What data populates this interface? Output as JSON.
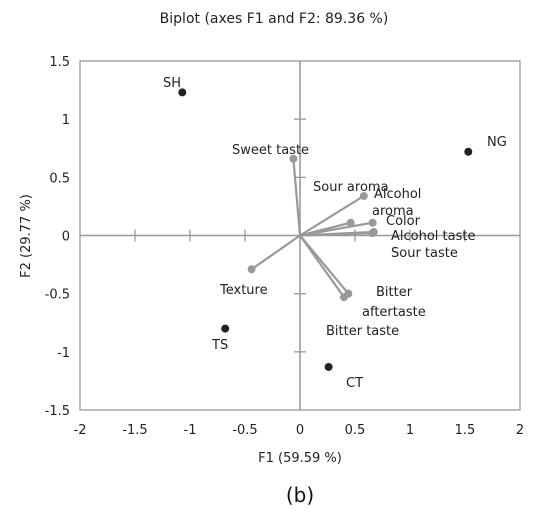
{
  "caption": "(b)",
  "chart_data": {
    "type": "scatter",
    "title": "Biplot (axes F1 and F2: 89.36 %)",
    "xlabel": "F1 (59.59 %)",
    "ylabel": "F2 (29.77 %)",
    "xlim": [
      -2,
      2
    ],
    "ylim": [
      -1.5,
      1.5
    ],
    "xticks": [
      "-2",
      "-1.5",
      "-1",
      "-0.5",
      "0",
      "0.5",
      "1",
      "1.5",
      "2"
    ],
    "yticks": [
      "1.5",
      "1",
      "0.5",
      "0",
      "-0.5",
      "-1",
      "-1.5"
    ],
    "grid": false,
    "colors": {
      "observations": "#222222",
      "variables": "#999999",
      "frame": "#999999"
    },
    "observations": [
      {
        "label": "SH",
        "x": -1.07,
        "y": 1.23
      },
      {
        "label": "NG",
        "x": 1.53,
        "y": 0.72
      },
      {
        "label": "TS",
        "x": -0.68,
        "y": -0.8
      },
      {
        "label": "CT",
        "x": 0.26,
        "y": -1.13
      }
    ],
    "variables": [
      {
        "label": "Sweet taste",
        "x": -0.06,
        "y": 0.66
      },
      {
        "label": "Sour aroma",
        "x": 0.46,
        "y": 0.11
      },
      {
        "label": "Alcohol aroma",
        "x": 0.58,
        "y": 0.34
      },
      {
        "label": "Color",
        "x": 0.66,
        "y": 0.11
      },
      {
        "label": "Alcohol taste",
        "x": 0.67,
        "y": 0.03
      },
      {
        "label": "Sour taste",
        "x": 0.66,
        "y": 0.02
      },
      {
        "label": "Texture",
        "x": -0.44,
        "y": -0.29
      },
      {
        "label": "Bitter aftertaste",
        "x": 0.44,
        "y": -0.5
      },
      {
        "label": "Bitter taste",
        "x": 0.4,
        "y": -0.53
      }
    ]
  }
}
